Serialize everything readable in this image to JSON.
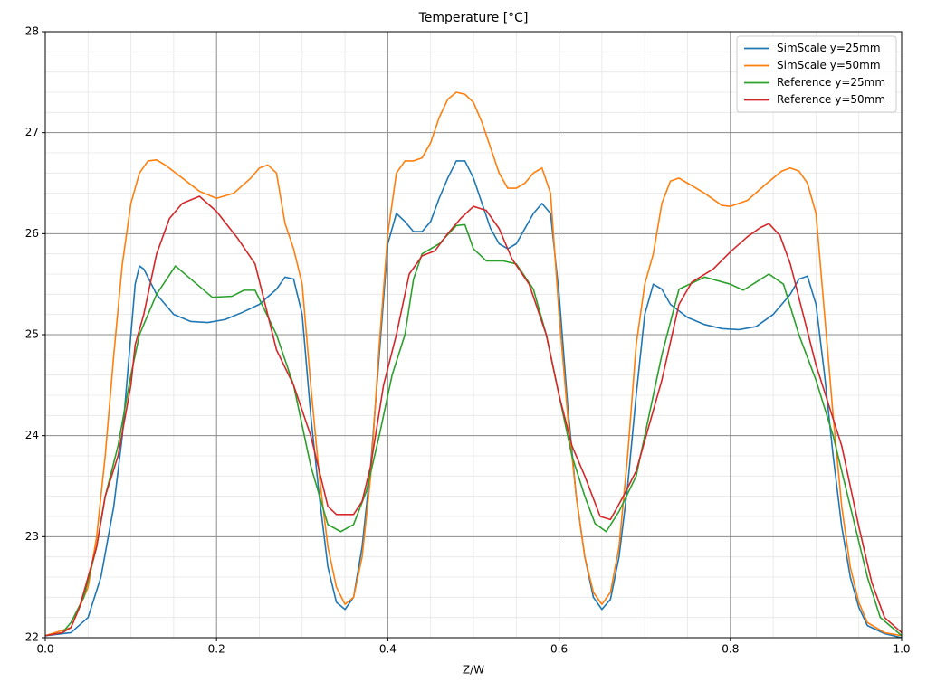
{
  "chart_data": {
    "type": "line",
    "title": "Temperature [°C]",
    "x_label": "Z/W",
    "xlim": [
      0,
      1
    ],
    "ylim": [
      22,
      28
    ],
    "xticks": [
      {
        "value": 0,
        "label": "0.0"
      },
      0.2,
      0.4,
      0.6,
      0.8,
      {
        "value": 1,
        "label": "1.0"
      }
    ],
    "yticks": [
      22,
      23,
      24,
      25,
      26,
      27,
      28
    ],
    "xminorticks": [
      0.05,
      0.1,
      0.15,
      0.25,
      0.3,
      0.35,
      0.45,
      0.5,
      0.55,
      0.65,
      0.7,
      0.75,
      0.85,
      0.9,
      0.95
    ],
    "yminorticks": [
      22.2,
      22.4,
      22.6,
      22.8,
      23.2,
      23.4,
      23.6,
      23.8,
      24.2,
      24.4,
      24.6,
      24.8,
      25.2,
      25.4,
      25.6,
      25.8,
      26.2,
      26.4,
      26.6,
      26.8,
      27.2,
      27.4,
      27.6,
      27.8
    ],
    "grid": true,
    "minor_grid": true,
    "legend": "upper right",
    "series": [
      {
        "name": "SimScale y=25mm",
        "color": "#1f77b4",
        "x": [
          0,
          0.03,
          0.05,
          0.065,
          0.08,
          0.09,
          0.1,
          0.105,
          0.11,
          0.115,
          0.13,
          0.15,
          0.17,
          0.19,
          0.21,
          0.23,
          0.25,
          0.27,
          0.28,
          0.29,
          0.3,
          0.31,
          0.32,
          0.33,
          0.34,
          0.35,
          0.36,
          0.37,
          0.38,
          0.39,
          0.4,
          0.41,
          0.42,
          0.43,
          0.44,
          0.45,
          0.46,
          0.47,
          0.48,
          0.49,
          0.5,
          0.51,
          0.52,
          0.53,
          0.54,
          0.55,
          0.56,
          0.57,
          0.58,
          0.59,
          0.6,
          0.61,
          0.62,
          0.63,
          0.64,
          0.65,
          0.66,
          0.67,
          0.68,
          0.69,
          0.7,
          0.71,
          0.72,
          0.73,
          0.75,
          0.77,
          0.79,
          0.81,
          0.83,
          0.85,
          0.87,
          0.88,
          0.89,
          0.9,
          0.91,
          0.92,
          0.93,
          0.94,
          0.95,
          0.96,
          0.98,
          1.0
        ],
        "values": [
          22.02,
          22.05,
          22.2,
          22.6,
          23.3,
          24.0,
          25.0,
          25.5,
          25.68,
          25.65,
          25.4,
          25.2,
          25.13,
          25.12,
          25.15,
          25.22,
          25.3,
          25.45,
          25.57,
          25.55,
          25.2,
          24.2,
          23.4,
          22.7,
          22.35,
          22.28,
          22.4,
          22.9,
          23.7,
          24.8,
          25.9,
          26.2,
          26.12,
          26.02,
          26.02,
          26.12,
          26.35,
          26.55,
          26.72,
          26.72,
          26.55,
          26.3,
          26.05,
          25.9,
          25.85,
          25.9,
          26.05,
          26.2,
          26.3,
          26.2,
          25.4,
          24.3,
          23.4,
          22.8,
          22.4,
          22.28,
          22.38,
          22.8,
          23.5,
          24.4,
          25.2,
          25.5,
          25.45,
          25.3,
          25.17,
          25.1,
          25.06,
          25.05,
          25.08,
          25.2,
          25.4,
          25.55,
          25.58,
          25.3,
          24.6,
          23.8,
          23.1,
          22.6,
          22.3,
          22.12,
          22.04,
          22.0
        ]
      },
      {
        "name": "SimScale y=50mm",
        "color": "#ff7f0e",
        "x": [
          0,
          0.03,
          0.05,
          0.06,
          0.07,
          0.08,
          0.09,
          0.1,
          0.11,
          0.12,
          0.13,
          0.14,
          0.16,
          0.18,
          0.2,
          0.22,
          0.24,
          0.25,
          0.26,
          0.27,
          0.28,
          0.29,
          0.3,
          0.31,
          0.32,
          0.33,
          0.34,
          0.35,
          0.36,
          0.37,
          0.38,
          0.39,
          0.4,
          0.41,
          0.42,
          0.43,
          0.44,
          0.45,
          0.46,
          0.47,
          0.48,
          0.49,
          0.5,
          0.51,
          0.52,
          0.53,
          0.54,
          0.55,
          0.56,
          0.57,
          0.58,
          0.59,
          0.6,
          0.61,
          0.62,
          0.63,
          0.64,
          0.65,
          0.66,
          0.67,
          0.68,
          0.69,
          0.7,
          0.71,
          0.72,
          0.73,
          0.74,
          0.75,
          0.77,
          0.79,
          0.8,
          0.82,
          0.84,
          0.86,
          0.87,
          0.88,
          0.89,
          0.9,
          0.91,
          0.92,
          0.93,
          0.94,
          0.95,
          0.96,
          0.98,
          1.0
        ],
        "values": [
          22.02,
          22.1,
          22.5,
          23.0,
          23.8,
          24.8,
          25.7,
          26.3,
          26.6,
          26.72,
          26.73,
          26.68,
          26.55,
          26.42,
          26.35,
          26.4,
          26.55,
          26.65,
          26.68,
          26.6,
          26.1,
          25.85,
          25.5,
          24.5,
          23.6,
          22.9,
          22.5,
          22.33,
          22.4,
          22.8,
          23.6,
          24.9,
          26.0,
          26.6,
          26.72,
          26.72,
          26.75,
          26.9,
          27.15,
          27.33,
          27.4,
          27.38,
          27.3,
          27.1,
          26.85,
          26.6,
          26.45,
          26.45,
          26.5,
          26.6,
          26.65,
          26.4,
          25.2,
          24.2,
          23.4,
          22.8,
          22.45,
          22.33,
          22.45,
          22.9,
          23.8,
          24.9,
          25.5,
          25.8,
          26.3,
          26.52,
          26.55,
          26.5,
          26.4,
          26.28,
          26.27,
          26.33,
          26.48,
          26.62,
          26.65,
          26.62,
          26.5,
          26.2,
          25.2,
          24.2,
          23.3,
          22.7,
          22.35,
          22.15,
          22.05,
          22.02
        ]
      },
      {
        "name": "Reference y=25mm",
        "color": "#2ca02c",
        "x": [
          0,
          0.02,
          0.03,
          0.045,
          0.06,
          0.07,
          0.085,
          0.1,
          0.11,
          0.13,
          0.152,
          0.195,
          0.218,
          0.232,
          0.245,
          0.27,
          0.29,
          0.31,
          0.33,
          0.345,
          0.36,
          0.375,
          0.39,
          0.405,
          0.42,
          0.43,
          0.44,
          0.46,
          0.48,
          0.49,
          0.5,
          0.515,
          0.535,
          0.55,
          0.57,
          0.585,
          0.6,
          0.615,
          0.63,
          0.642,
          0.655,
          0.67,
          0.69,
          0.705,
          0.72,
          0.74,
          0.77,
          0.8,
          0.815,
          0.83,
          0.845,
          0.862,
          0.88,
          0.9,
          0.92,
          0.94,
          0.96,
          0.975,
          1.0
        ],
        "values": [
          22.02,
          22.05,
          22.15,
          22.4,
          22.9,
          23.4,
          23.9,
          24.6,
          25.0,
          25.4,
          25.68,
          25.37,
          25.38,
          25.44,
          25.44,
          25.0,
          24.5,
          23.7,
          23.12,
          23.05,
          23.12,
          23.45,
          24.0,
          24.6,
          25.0,
          25.55,
          25.8,
          25.9,
          26.08,
          26.09,
          25.85,
          25.73,
          25.73,
          25.7,
          25.45,
          25.0,
          24.4,
          23.8,
          23.4,
          23.13,
          23.05,
          23.25,
          23.6,
          24.2,
          24.8,
          25.45,
          25.57,
          25.5,
          25.44,
          25.52,
          25.6,
          25.5,
          25.0,
          24.55,
          24.0,
          23.3,
          22.6,
          22.2,
          22.02
        ]
      },
      {
        "name": "Reference y=50mm",
        "color": "#d62728",
        "x": [
          0,
          0.02,
          0.03,
          0.04,
          0.06,
          0.07,
          0.085,
          0.1,
          0.105,
          0.115,
          0.13,
          0.145,
          0.16,
          0.18,
          0.2,
          0.225,
          0.245,
          0.27,
          0.29,
          0.31,
          0.33,
          0.34,
          0.36,
          0.37,
          0.38,
          0.395,
          0.41,
          0.425,
          0.44,
          0.455,
          0.47,
          0.485,
          0.5,
          0.515,
          0.53,
          0.545,
          0.565,
          0.585,
          0.6,
          0.615,
          0.63,
          0.648,
          0.66,
          0.675,
          0.69,
          0.705,
          0.72,
          0.74,
          0.755,
          0.78,
          0.8,
          0.82,
          0.835,
          0.845,
          0.858,
          0.87,
          0.885,
          0.9,
          0.915,
          0.93,
          0.95,
          0.965,
          0.98,
          1.0
        ],
        "values": [
          22.02,
          22.05,
          22.1,
          22.3,
          22.9,
          23.4,
          23.8,
          24.5,
          24.9,
          25.2,
          25.8,
          26.15,
          26.3,
          26.37,
          26.22,
          25.95,
          25.7,
          24.85,
          24.5,
          24.0,
          23.3,
          23.22,
          23.22,
          23.35,
          23.7,
          24.5,
          25.0,
          25.6,
          25.78,
          25.83,
          26.0,
          26.15,
          26.27,
          26.23,
          26.05,
          25.75,
          25.5,
          25.0,
          24.4,
          23.9,
          23.6,
          23.2,
          23.17,
          23.4,
          23.65,
          24.1,
          24.55,
          25.3,
          25.52,
          25.65,
          25.82,
          25.97,
          26.06,
          26.1,
          25.98,
          25.7,
          25.2,
          24.7,
          24.3,
          23.9,
          23.1,
          22.55,
          22.2,
          22.05
        ]
      }
    ]
  }
}
